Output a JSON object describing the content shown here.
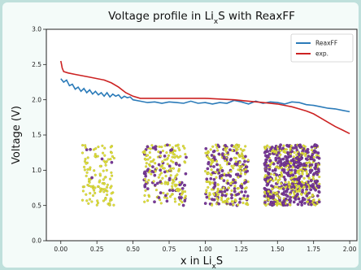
{
  "chart_data": {
    "type": "line",
    "title_main": "Voltage profile in Li",
    "title_sub": "x",
    "title_tail": "S with ReaxFF",
    "xlabel_main": "x in Li",
    "xlabel_sub": "x",
    "xlabel_tail": "S",
    "ylabel": "Voltage (V)",
    "xlim": [
      -0.1,
      2.05
    ],
    "ylim": [
      0.0,
      3.0
    ],
    "xticks": [
      "0.00",
      "0.25",
      "0.50",
      "0.75",
      "1.00",
      "1.25",
      "1.50",
      "1.75",
      "2.00"
    ],
    "yticks": [
      "0.0",
      "0.5",
      "1.0",
      "1.5",
      "2.0",
      "2.5",
      "3.0"
    ],
    "legend_position": "top-right",
    "grid": false,
    "series": [
      {
        "name": "ReaxFF",
        "color": "#2b7bb9",
        "x": [
          0.0,
          0.02,
          0.04,
          0.06,
          0.08,
          0.1,
          0.12,
          0.14,
          0.16,
          0.18,
          0.2,
          0.22,
          0.24,
          0.26,
          0.28,
          0.3,
          0.32,
          0.34,
          0.36,
          0.38,
          0.4,
          0.42,
          0.44,
          0.46,
          0.48,
          0.5,
          0.55,
          0.6,
          0.65,
          0.7,
          0.75,
          0.8,
          0.85,
          0.9,
          0.95,
          1.0,
          1.05,
          1.1,
          1.15,
          1.2,
          1.25,
          1.3,
          1.35,
          1.4,
          1.45,
          1.5,
          1.55,
          1.6,
          1.65,
          1.7,
          1.75,
          1.8,
          1.85,
          1.9,
          1.95,
          2.0
        ],
        "y": [
          2.3,
          2.25,
          2.28,
          2.2,
          2.22,
          2.15,
          2.18,
          2.12,
          2.16,
          2.1,
          2.14,
          2.08,
          2.12,
          2.07,
          2.1,
          2.05,
          2.1,
          2.04,
          2.08,
          2.05,
          2.07,
          2.02,
          2.05,
          2.03,
          2.04,
          2.0,
          1.98,
          1.96,
          1.97,
          1.95,
          1.97,
          1.96,
          1.95,
          1.98,
          1.95,
          1.96,
          1.94,
          1.96,
          1.95,
          1.99,
          1.97,
          1.94,
          1.98,
          1.95,
          1.97,
          1.96,
          1.94,
          1.97,
          1.96,
          1.93,
          1.92,
          1.9,
          1.88,
          1.87,
          1.85,
          1.83
        ]
      },
      {
        "name": "exp.",
        "color": "#cc2222",
        "x": [
          0.0,
          0.005,
          0.01,
          0.02,
          0.05,
          0.1,
          0.2,
          0.3,
          0.35,
          0.4,
          0.45,
          0.5,
          0.55,
          0.6,
          0.7,
          0.8,
          0.9,
          1.0,
          1.1,
          1.2,
          1.3,
          1.4,
          1.5,
          1.55,
          1.6,
          1.65,
          1.7,
          1.75,
          1.8,
          1.85,
          1.9,
          1.95,
          2.0
        ],
        "y": [
          2.55,
          2.5,
          2.45,
          2.4,
          2.38,
          2.36,
          2.32,
          2.28,
          2.24,
          2.18,
          2.1,
          2.05,
          2.02,
          2.02,
          2.02,
          2.02,
          2.02,
          2.02,
          2.01,
          2.0,
          1.98,
          1.96,
          1.94,
          1.92,
          1.9,
          1.87,
          1.84,
          1.8,
          1.74,
          1.68,
          1.62,
          1.57,
          1.52
        ]
      }
    ],
    "insets": [
      {
        "label": "molecular-structure",
        "x_center": 0.26,
        "y_center": 0.93,
        "width": 0.22,
        "height": 0.86,
        "density": 120,
        "li_fraction": 0.05
      },
      {
        "label": "molecular-structure",
        "x_center": 0.72,
        "y_center": 0.93,
        "width": 0.3,
        "height": 0.86,
        "density": 220,
        "li_fraction": 0.35
      },
      {
        "label": "molecular-structure",
        "x_center": 1.15,
        "y_center": 0.93,
        "width": 0.3,
        "height": 0.86,
        "density": 320,
        "li_fraction": 0.45
      },
      {
        "label": "molecular-structure",
        "x_center": 1.6,
        "y_center": 0.93,
        "width": 0.38,
        "height": 0.86,
        "density": 700,
        "li_fraction": 0.55
      }
    ]
  }
}
